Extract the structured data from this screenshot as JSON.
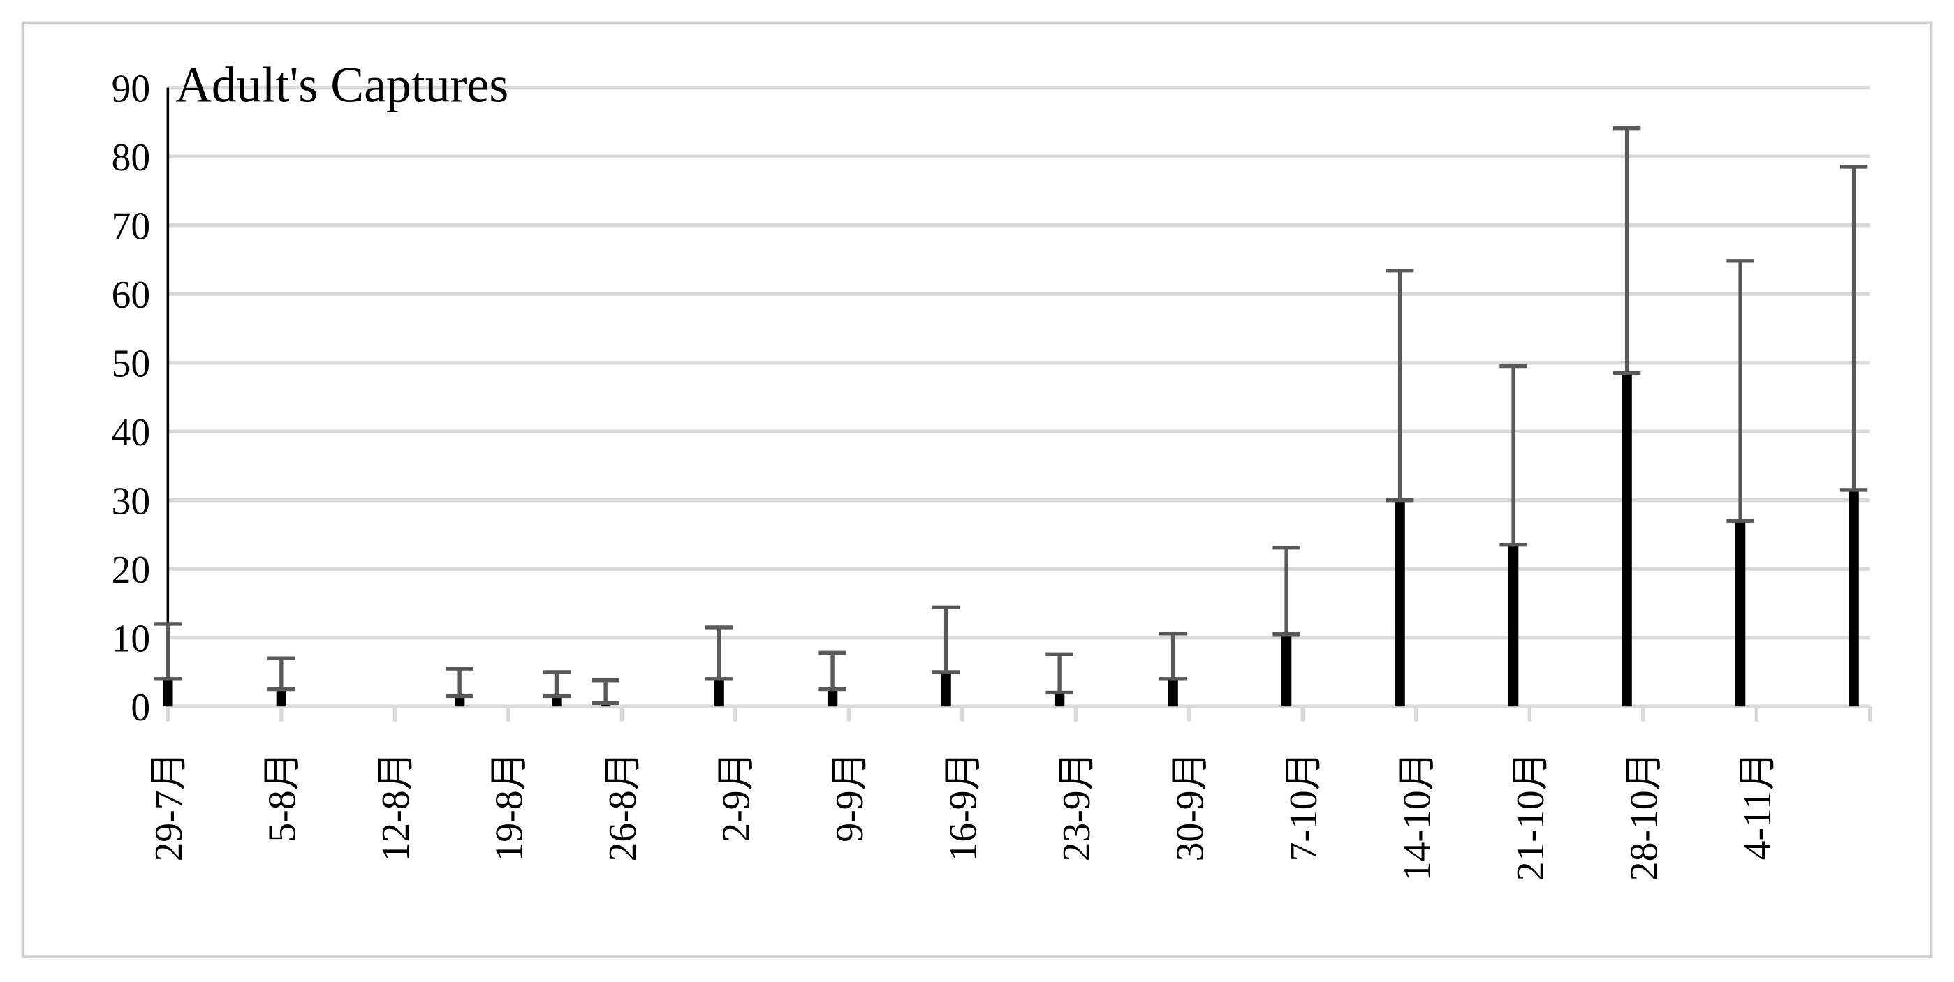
{
  "chart_data": {
    "type": "bar",
    "title": "Adult's Captures",
    "x": [
      210,
      217,
      228,
      234,
      237,
      244,
      251,
      258,
      265,
      272,
      279,
      286,
      293,
      300,
      307,
      314
    ],
    "values": [
      4,
      2.5,
      1.5,
      1.5,
      0.5,
      4,
      2.5,
      5,
      2,
      4,
      10.5,
      30,
      23.5,
      48.5,
      27,
      31.5
    ],
    "errors": [
      8,
      4.5,
      4,
      3.5,
      3.3,
      7.5,
      5.3,
      9.4,
      5.6,
      6.6,
      12.6,
      33.4,
      26,
      35.6,
      37.8,
      47
    ],
    "color": "#000000",
    "error_color": "#595959",
    "xlim": [
      210,
      315
    ],
    "xticks": [
      {
        "value": 210,
        "label": "29-7月"
      },
      {
        "value": 217,
        "label": "5-8月"
      },
      {
        "value": 224,
        "label": "12-8月"
      },
      {
        "value": 231,
        "label": "19-8月"
      },
      {
        "value": 238,
        "label": "26-8月"
      },
      {
        "value": 245,
        "label": "2-9月"
      },
      {
        "value": 252,
        "label": "9-9月"
      },
      {
        "value": 259,
        "label": "16-9月"
      },
      {
        "value": 266,
        "label": "23-9月"
      },
      {
        "value": 273,
        "label": "30-9月"
      },
      {
        "value": 280,
        "label": "7-10月"
      },
      {
        "value": 287,
        "label": "14-10月"
      },
      {
        "value": 294,
        "label": "21-10月"
      },
      {
        "value": 301,
        "label": "28-10月"
      },
      {
        "value": 308,
        "label": "4-11月"
      }
    ],
    "ylim": [
      0,
      90
    ],
    "yticks": [
      0,
      10,
      20,
      30,
      40,
      50,
      60,
      70,
      80,
      90
    ],
    "grid": true
  }
}
